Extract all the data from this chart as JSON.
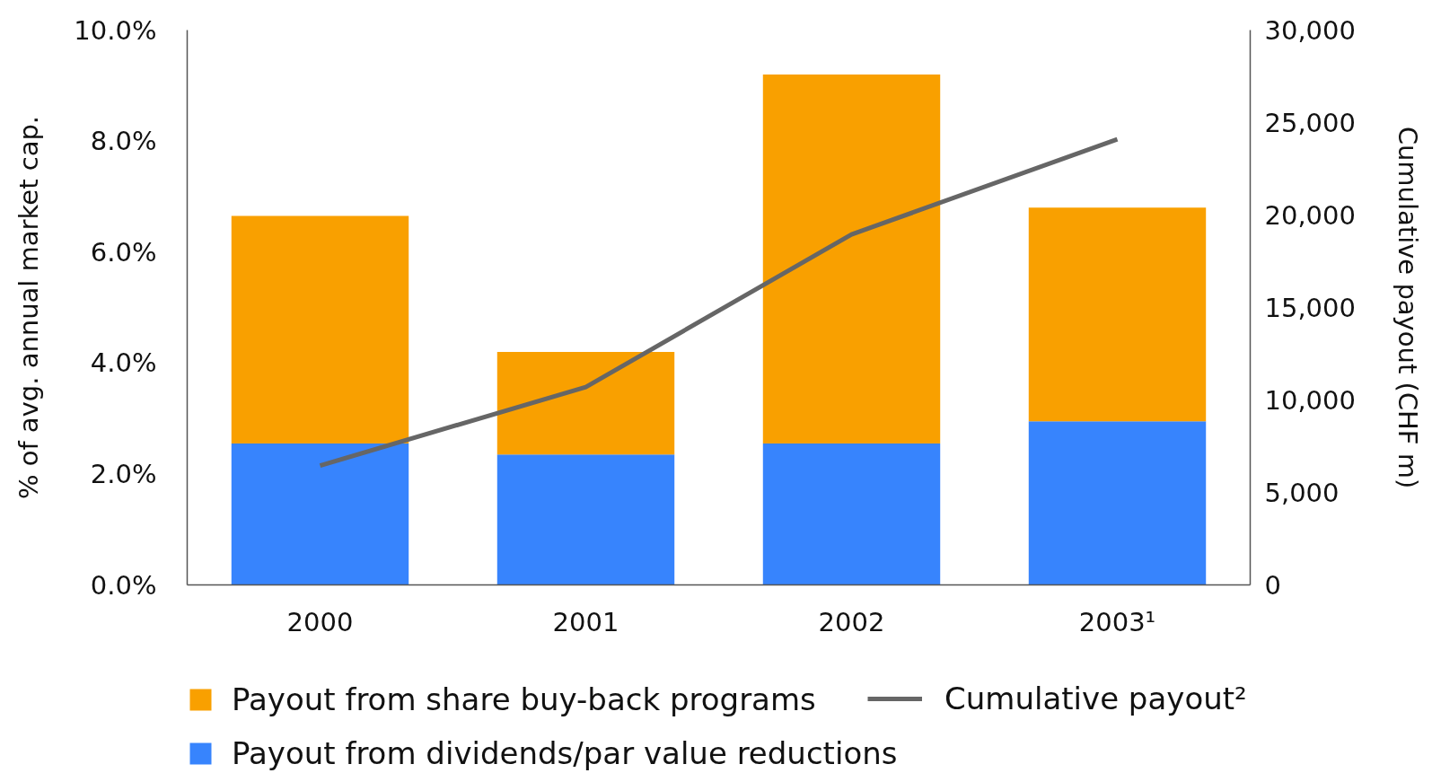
{
  "chart_data": {
    "type": "bar",
    "stacked": true,
    "categories": [
      "2000",
      "2001",
      "2002",
      "2003¹"
    ],
    "series": [
      {
        "name": "Payout from dividends/par value reductions",
        "color": "#3784fd",
        "values": [
          2.55,
          2.35,
          2.55,
          2.95
        ]
      },
      {
        "name": "Payout from share buy-back programs",
        "color": "#f9a000",
        "values": [
          4.1,
          1.85,
          6.65,
          3.85
        ]
      },
      {
        "name": "Cumulative payout²",
        "type": "line",
        "axis": "y2",
        "color": "#666666",
        "values": [
          6450,
          10700,
          18950,
          24100
        ]
      }
    ],
    "ylabel": "% of avg. annual market cap.",
    "y2label": "Cumulative payout (CHF m)",
    "ylim": [
      0,
      10
    ],
    "yticks": [
      {
        "value": 0,
        "label": "0.0%"
      },
      {
        "value": 2,
        "label": "2.0%"
      },
      {
        "value": 4,
        "label": "4.0%"
      },
      {
        "value": 6,
        "label": "6.0%"
      },
      {
        "value": 8,
        "label": "8.0%"
      },
      {
        "value": 10,
        "label": "10.0%"
      }
    ],
    "y2lim": [
      0,
      30000
    ],
    "y2ticks": [
      0,
      {
        "value": 5000,
        "label": "5,000"
      },
      {
        "value": 10000,
        "label": "10,000"
      },
      {
        "value": 15000,
        "label": "15,000"
      },
      {
        "value": 20000,
        "label": "20,000"
      },
      {
        "value": 25000,
        "label": "25,000"
      },
      {
        "value": 30000,
        "label": "30,000"
      }
    ],
    "legend": "bottom"
  }
}
